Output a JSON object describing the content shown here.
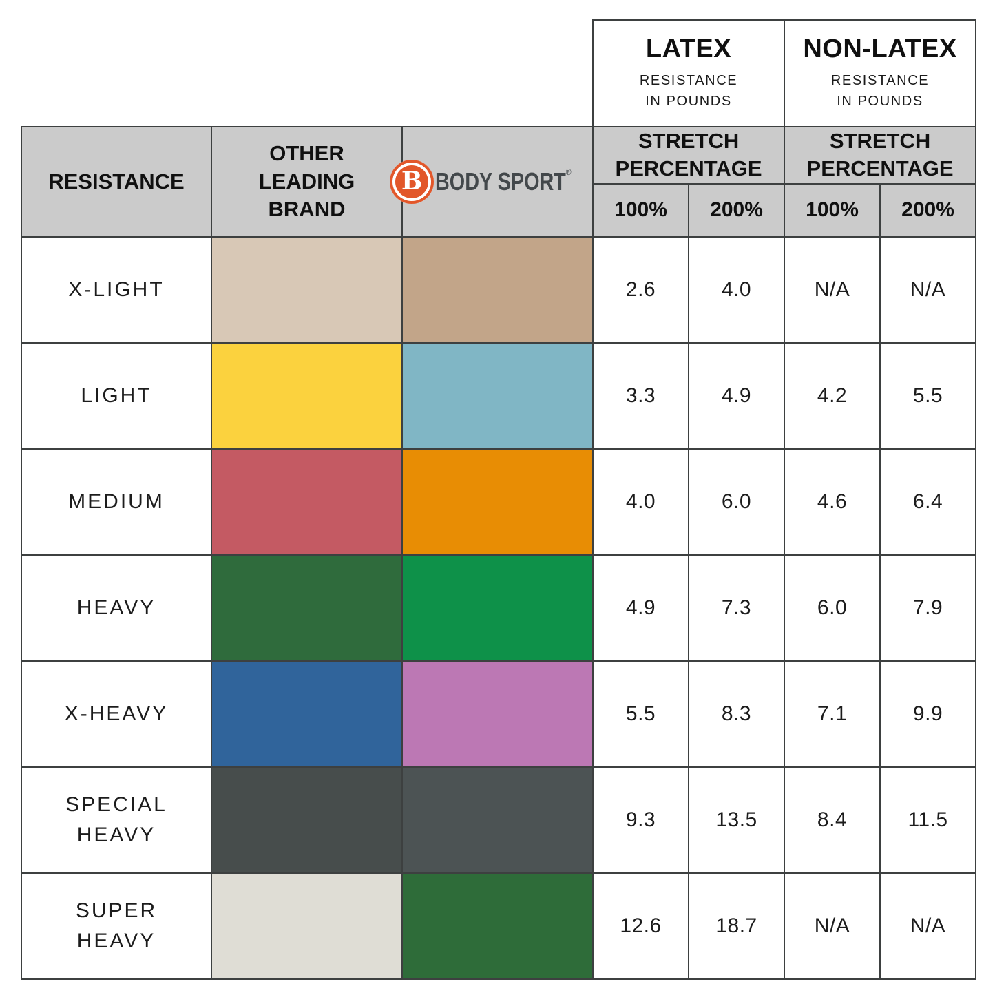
{
  "table": {
    "corner": {
      "resistance_label": "RESISTANCE",
      "other_brand_label": "OTHER\nLEADING\nBRAND"
    },
    "brand": {
      "wordmark": "BODY SPORT",
      "registered_mark": "®",
      "logo_letter": "B",
      "logo_color": "#e2572a",
      "wordmark_color": "#43484b"
    },
    "latex_header": {
      "title": "LATEX",
      "subtitle": "RESISTANCE\nIN POUNDS"
    },
    "nonlatex_header": {
      "title": "NON-LATEX",
      "subtitle": "RESISTANCE\nIN POUNDS"
    },
    "latex_stretch_header": "STRETCH\nPERCENTAGE",
    "nonlatex_stretch_header": "STRETCH\nPERCENTAGE",
    "latex_pct_100": "100%",
    "latex_pct_200": "200%",
    "nonlatex_pct_100": "100%",
    "nonlatex_pct_200": "200%",
    "rows": [
      {
        "label": "X-LIGHT",
        "other_color": "#d8c8b6",
        "bodysport_color": "#c2a589",
        "values": [
          "2.6",
          "4.0",
          "N/A",
          "N/A"
        ]
      },
      {
        "label": "LIGHT",
        "other_color": "#fbd23e",
        "bodysport_color": "#80b6c5",
        "values": [
          "3.3",
          "4.9",
          "4.2",
          "5.5"
        ]
      },
      {
        "label": "MEDIUM",
        "other_color": "#c45a63",
        "bodysport_color": "#e88d04",
        "values": [
          "4.0",
          "6.0",
          "4.6",
          "6.4"
        ]
      },
      {
        "label": "HEAVY",
        "other_color": "#2f6b3c",
        "bodysport_color": "#0e9149",
        "values": [
          "4.9",
          "7.3",
          "6.0",
          "7.9"
        ]
      },
      {
        "label": "X-HEAVY",
        "other_color": "#30649b",
        "bodysport_color": "#bc78b4",
        "values": [
          "5.5",
          "8.3",
          "7.1",
          "9.9"
        ]
      },
      {
        "label": "SPECIAL\nHEAVY",
        "other_color": "#474d4c",
        "bodysport_color": "#4c5354",
        "values": [
          "9.3",
          "13.5",
          "8.4",
          "11.5"
        ]
      },
      {
        "label": "SUPER\nHEAVY",
        "other_color": "#dfddd5",
        "bodysport_color": "#2e6c39",
        "values": [
          "12.6",
          "18.7",
          "N/A",
          "N/A"
        ]
      }
    ]
  },
  "colors": {
    "header_gray": "#cbcbcb",
    "grid_border": "#3d4040",
    "text": "#1c1c1c",
    "logo_orange": "#e2572a"
  },
  "chart_data": {
    "type": "table",
    "title": "Resistance band comparison: Body Sport vs Other Leading Brand",
    "columns": [
      "RESISTANCE",
      "OTHER LEADING BRAND",
      "BODY SPORT",
      "LATEX 100%",
      "LATEX 200%",
      "NON-LATEX 100%",
      "NON-LATEX 200%"
    ],
    "column_groups": [
      {
        "title": "LATEX",
        "subtitle": "RESISTANCE IN POUNDS",
        "sub_columns": [
          "100%",
          "200%"
        ],
        "group_header": "STRETCH PERCENTAGE"
      },
      {
        "title": "NON-LATEX",
        "subtitle": "RESISTANCE IN POUNDS",
        "sub_columns": [
          "100%",
          "200%"
        ],
        "group_header": "STRETCH PERCENTAGE"
      }
    ],
    "rows": [
      {
        "resistance": "X-LIGHT",
        "other_brand_color": "#d8c8b6",
        "bodysport_color": "#c2a589",
        "latex_100": "2.6",
        "latex_200": "4.0",
        "nonlatex_100": "N/A",
        "nonlatex_200": "N/A"
      },
      {
        "resistance": "LIGHT",
        "other_brand_color": "#fbd23e",
        "bodysport_color": "#80b6c5",
        "latex_100": "3.3",
        "latex_200": "4.9",
        "nonlatex_100": "4.2",
        "nonlatex_200": "5.5"
      },
      {
        "resistance": "MEDIUM",
        "other_brand_color": "#c45a63",
        "bodysport_color": "#e88d04",
        "latex_100": "4.0",
        "latex_200": "6.0",
        "nonlatex_100": "4.6",
        "nonlatex_200": "6.4"
      },
      {
        "resistance": "HEAVY",
        "other_brand_color": "#2f6b3c",
        "bodysport_color": "#0e9149",
        "latex_100": "4.9",
        "latex_200": "7.3",
        "nonlatex_100": "6.0",
        "nonlatex_200": "7.9"
      },
      {
        "resistance": "X-HEAVY",
        "other_brand_color": "#30649b",
        "bodysport_color": "#bc78b4",
        "latex_100": "5.5",
        "latex_200": "8.3",
        "nonlatex_100": "7.1",
        "nonlatex_200": "9.9"
      },
      {
        "resistance": "SPECIAL HEAVY",
        "other_brand_color": "#474d4c",
        "bodysport_color": "#4c5354",
        "latex_100": "9.3",
        "latex_200": "13.5",
        "nonlatex_100": "8.4",
        "nonlatex_200": "11.5"
      },
      {
        "resistance": "SUPER HEAVY",
        "other_brand_color": "#dfddd5",
        "bodysport_color": "#2e6c39",
        "latex_100": "12.6",
        "latex_200": "18.7",
        "nonlatex_100": "N/A",
        "nonlatex_200": "N/A"
      }
    ]
  }
}
